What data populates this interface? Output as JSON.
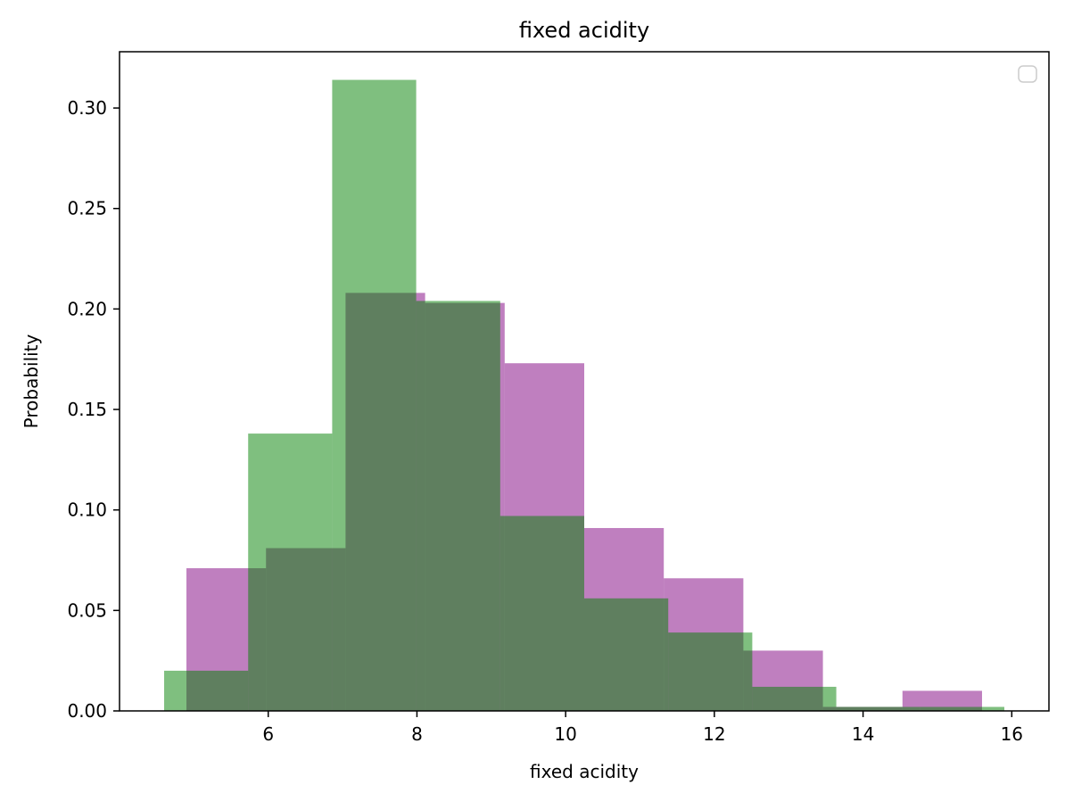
{
  "chart_data": {
    "type": "bar",
    "title": "fixed acidity",
    "xlabel": "fixed acidity",
    "ylabel": "Probability",
    "xlim": [
      4.0,
      16.5
    ],
    "ylim": [
      0.0,
      0.328
    ],
    "xticks": [
      "6",
      "8",
      "10",
      "12",
      "14",
      "16"
    ],
    "xtick_values": [
      6,
      8,
      10,
      12,
      14,
      16
    ],
    "yticks": [
      "0.00",
      "0.05",
      "0.10",
      "0.15",
      "0.20",
      "0.25",
      "0.30"
    ],
    "ytick_values": [
      0.0,
      0.05,
      0.1,
      0.15,
      0.2,
      0.25,
      0.3
    ],
    "grid": false,
    "legend": {
      "placement": "top-right",
      "entries": []
    },
    "series": [
      {
        "color": "#800080",
        "opacity": 0.5,
        "bins": [
          {
            "x0": 4.9,
            "x1": 5.97,
            "value": 0.071
          },
          {
            "x0": 5.97,
            "x1": 7.04,
            "value": 0.081
          },
          {
            "x0": 7.04,
            "x1": 8.11,
            "value": 0.208
          },
          {
            "x0": 8.11,
            "x1": 9.18,
            "value": 0.203
          },
          {
            "x0": 9.18,
            "x1": 10.25,
            "value": 0.173
          },
          {
            "x0": 10.25,
            "x1": 11.32,
            "value": 0.091
          },
          {
            "x0": 11.32,
            "x1": 12.39,
            "value": 0.066
          },
          {
            "x0": 12.39,
            "x1": 13.46,
            "value": 0.03
          },
          {
            "x0": 13.46,
            "x1": 14.53,
            "value": 0.002
          },
          {
            "x0": 14.53,
            "x1": 15.6,
            "value": 0.01
          }
        ]
      },
      {
        "color": "#008000",
        "opacity": 0.5,
        "bins": [
          {
            "x0": 4.6,
            "x1": 5.73,
            "value": 0.02
          },
          {
            "x0": 5.73,
            "x1": 6.86,
            "value": 0.138
          },
          {
            "x0": 6.86,
            "x1": 7.99,
            "value": 0.314
          },
          {
            "x0": 7.99,
            "x1": 9.12,
            "value": 0.204
          },
          {
            "x0": 9.12,
            "x1": 10.25,
            "value": 0.097
          },
          {
            "x0": 10.25,
            "x1": 11.38,
            "value": 0.056
          },
          {
            "x0": 11.38,
            "x1": 12.51,
            "value": 0.039
          },
          {
            "x0": 12.51,
            "x1": 13.64,
            "value": 0.012
          },
          {
            "x0": 13.64,
            "x1": 14.77,
            "value": 0.002
          },
          {
            "x0": 14.77,
            "x1": 15.9,
            "value": 0.002
          }
        ]
      }
    ]
  }
}
